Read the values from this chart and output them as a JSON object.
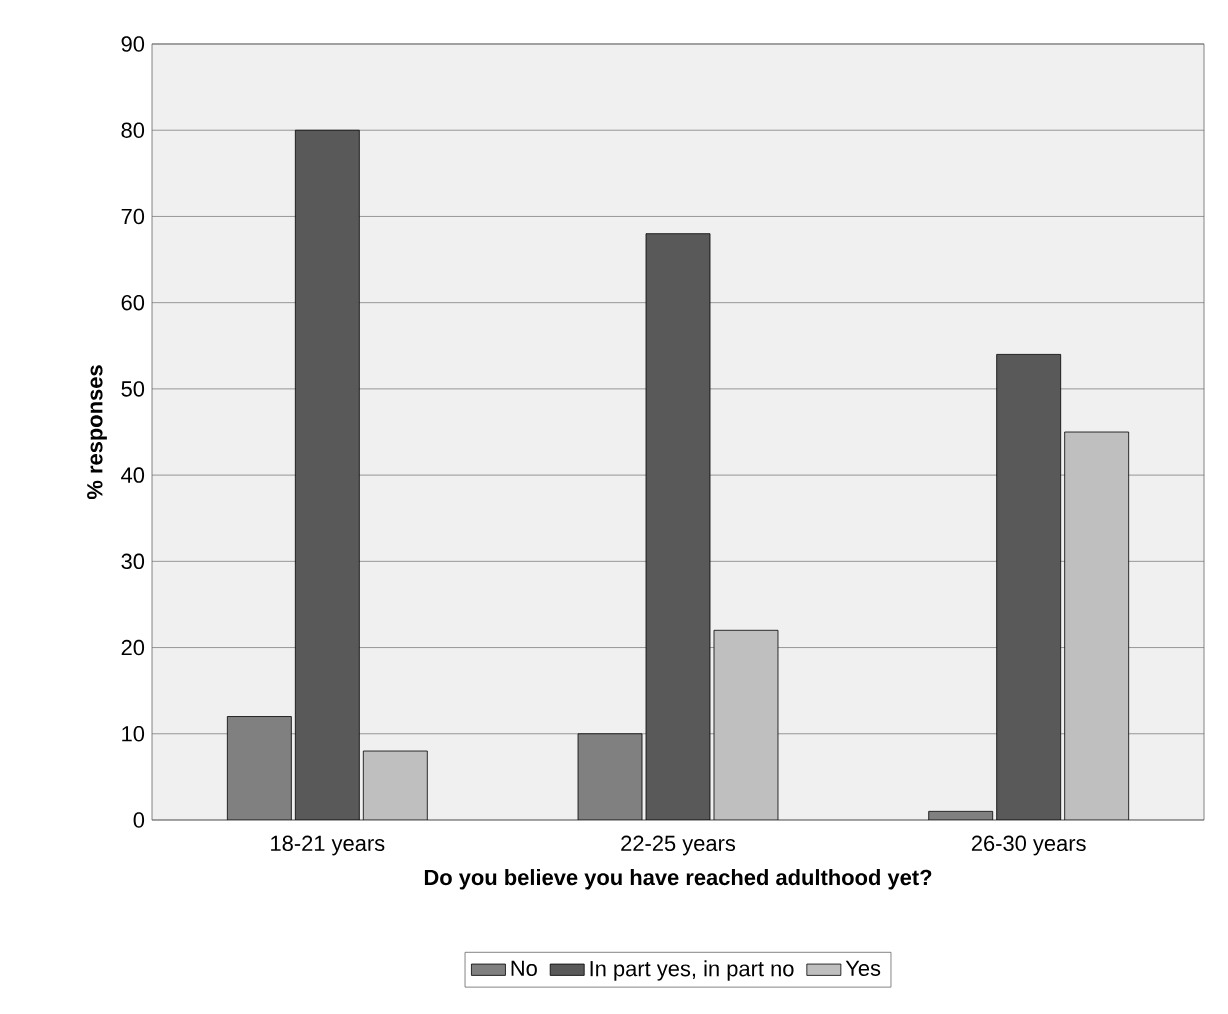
{
  "chart_data": {
    "type": "bar",
    "xlabel": "Do you believe you have reached adulthood yet?",
    "ylabel": "% responses",
    "categories": [
      "18-21 years",
      "22-25 years",
      "26-30 years"
    ],
    "series": [
      {
        "name": "No",
        "color": "#808080",
        "values": [
          12,
          10,
          1
        ]
      },
      {
        "name": "In part yes, in part no",
        "color": "#595959",
        "values": [
          80,
          68,
          54
        ]
      },
      {
        "name": "Yes",
        "color": "#bfbfbf",
        "values": [
          8,
          22,
          45
        ]
      }
    ],
    "ylim": [
      0,
      90
    ],
    "yticks": [
      0,
      10,
      20,
      30,
      40,
      50,
      60,
      70,
      80,
      90
    ],
    "grid": "y",
    "legend": "bottom"
  }
}
